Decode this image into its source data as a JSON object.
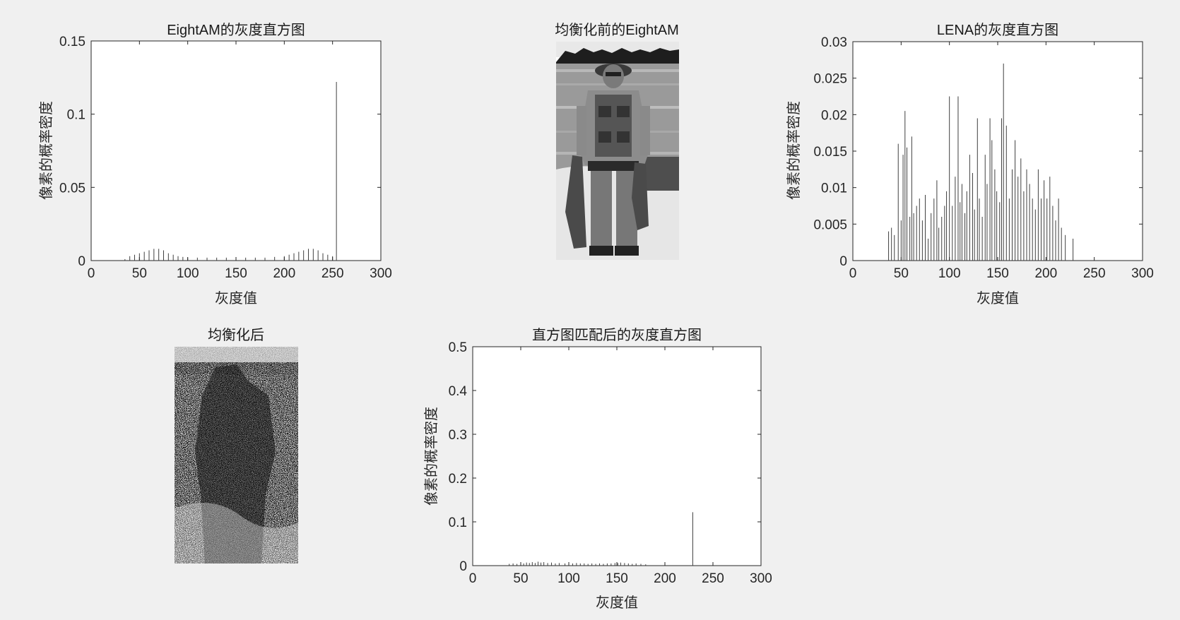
{
  "figure": {
    "background": "#f0f0f0",
    "axes_color": "#262626",
    "bar_color": "#404040"
  },
  "images": [
    {
      "title": "均衡化前的EightAM",
      "kind": "grayscale-photo",
      "style": "original"
    },
    {
      "title": "均衡化后",
      "kind": "grayscale-photo",
      "style": "equalized-noisy"
    }
  ],
  "chart_data": [
    {
      "type": "bar",
      "title": "EightAM的灰度直方图",
      "xlabel": "灰度值",
      "ylabel": "像素的概率密度",
      "xlim": [
        0,
        300
      ],
      "ylim": [
        0,
        0.15
      ],
      "xticks": [
        "0",
        "50",
        "100",
        "150",
        "200",
        "250",
        "300"
      ],
      "yticks": [
        "0",
        "0.05",
        "0.1",
        "0.15"
      ],
      "grid": false,
      "x": [
        35,
        40,
        45,
        50,
        55,
        60,
        65,
        70,
        75,
        80,
        85,
        90,
        95,
        100,
        110,
        120,
        130,
        140,
        150,
        160,
        170,
        180,
        190,
        200,
        205,
        210,
        215,
        220,
        225,
        230,
        235,
        240,
        245,
        250,
        254
      ],
      "values": [
        0.001,
        0.003,
        0.004,
        0.005,
        0.006,
        0.007,
        0.008,
        0.008,
        0.007,
        0.005,
        0.004,
        0.003,
        0.0025,
        0.002,
        0.002,
        0.002,
        0.002,
        0.002,
        0.002,
        0.002,
        0.002,
        0.002,
        0.0025,
        0.003,
        0.004,
        0.005,
        0.006,
        0.007,
        0.008,
        0.008,
        0.007,
        0.005,
        0.004,
        0.003,
        0.122
      ]
    },
    {
      "type": "bar",
      "title": "LENA的灰度直方图",
      "xlabel": "灰度值",
      "ylabel": "像素的概率密度",
      "xlim": [
        0,
        300
      ],
      "ylim": [
        0,
        0.03
      ],
      "xticks": [
        "0",
        "50",
        "100",
        "150",
        "200",
        "250",
        "300"
      ],
      "yticks": [
        "0",
        "0.005",
        "0.01",
        "0.015",
        "0.02",
        "0.025",
        "0.03"
      ],
      "grid": false,
      "x": [
        37,
        40,
        43,
        47,
        50,
        52,
        54,
        56,
        59,
        61,
        63,
        66,
        69,
        72,
        75,
        78,
        81,
        84,
        87,
        89,
        92,
        95,
        97,
        100,
        103,
        106,
        109,
        111,
        113,
        116,
        118,
        121,
        124,
        126,
        129,
        131,
        134,
        137,
        139,
        142,
        144,
        147,
        149,
        152,
        154,
        156,
        159,
        162,
        165,
        168,
        171,
        174,
        177,
        180,
        183,
        186,
        189,
        192,
        195,
        198,
        201,
        204,
        207,
        210,
        213,
        216,
        220,
        228
      ],
      "values": [
        0.004,
        0.0045,
        0.0035,
        0.016,
        0.0055,
        0.0145,
        0.0205,
        0.0155,
        0.006,
        0.017,
        0.0065,
        0.0075,
        0.0085,
        0.0055,
        0.009,
        0.003,
        0.0065,
        0.0085,
        0.011,
        0.0045,
        0.006,
        0.0075,
        0.0095,
        0.0225,
        0.0075,
        0.0115,
        0.0225,
        0.008,
        0.0105,
        0.0065,
        0.0095,
        0.0145,
        0.012,
        0.007,
        0.0195,
        0.0085,
        0.006,
        0.0145,
        0.0105,
        0.0195,
        0.0165,
        0.0125,
        0.0095,
        0.008,
        0.0195,
        0.027,
        0.0185,
        0.0085,
        0.0125,
        0.0165,
        0.0115,
        0.014,
        0.0095,
        0.0125,
        0.0105,
        0.0085,
        0.007,
        0.0125,
        0.0085,
        0.011,
        0.0085,
        0.0115,
        0.0075,
        0.0055,
        0.0085,
        0.0045,
        0.0035,
        0.003
      ]
    },
    {
      "type": "bar",
      "title": "直方图匹配后的灰度直方图",
      "xlabel": "灰度值",
      "ylabel": "像素的概率密度",
      "xlim": [
        0,
        300
      ],
      "ylim": [
        0,
        0.5
      ],
      "xticks": [
        "0",
        "50",
        "100",
        "150",
        "200",
        "250",
        "300"
      ],
      "yticks": [
        "0",
        "0.1",
        "0.2",
        "0.3",
        "0.4",
        "0.5"
      ],
      "grid": false,
      "x": [
        38,
        42,
        46,
        50,
        53,
        56,
        59,
        62,
        65,
        68,
        71,
        74,
        78,
        82,
        86,
        90,
        96,
        100,
        104,
        108,
        112,
        116,
        120,
        124,
        128,
        132,
        136,
        140,
        144,
        148,
        151,
        154,
        158,
        162,
        166,
        170,
        175,
        180,
        229
      ],
      "values": [
        0.004,
        0.005,
        0.004,
        0.006,
        0.005,
        0.007,
        0.006,
        0.008,
        0.006,
        0.009,
        0.007,
        0.008,
        0.006,
        0.007,
        0.005,
        0.006,
        0.005,
        0.006,
        0.005,
        0.006,
        0.005,
        0.005,
        0.004,
        0.005,
        0.004,
        0.005,
        0.004,
        0.005,
        0.005,
        0.006,
        0.006,
        0.007,
        0.006,
        0.005,
        0.004,
        0.005,
        0.004,
        0.003,
        0.122
      ]
    }
  ]
}
